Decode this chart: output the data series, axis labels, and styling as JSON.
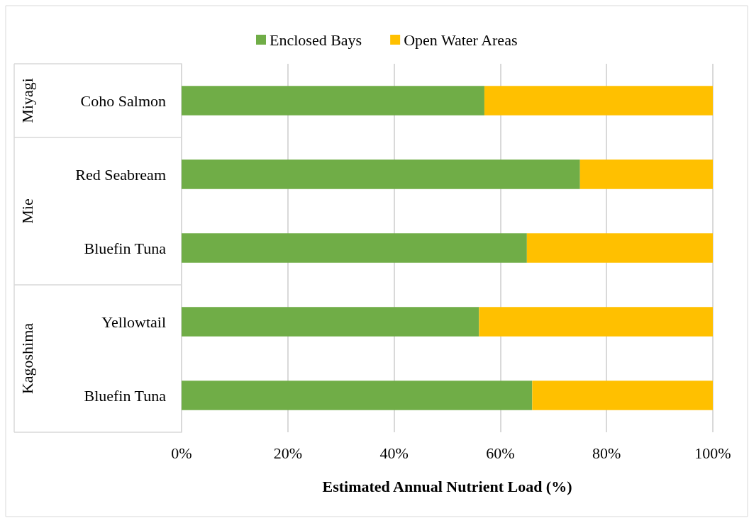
{
  "chart_data": {
    "type": "bar",
    "orientation": "horizontal",
    "stacked": true,
    "categories": [
      "Coho Salmon",
      "Red Seabream",
      "Bluefin Tuna",
      "Yellowtail",
      "Bluefin Tuna"
    ],
    "series": [
      {
        "name": "Enclosed Bays",
        "color": "#70ad47",
        "values": [
          57,
          75,
          65,
          56,
          66
        ]
      },
      {
        "name": "Open Water Areas",
        "color": "#ffc000",
        "values": [
          43,
          25,
          35,
          44,
          34
        ]
      }
    ],
    "xlabel": "Estimated Annual Nutrient Load (%)",
    "xlim": [
      0,
      100
    ],
    "xticks": [
      {
        "value": 0,
        "label": "0%"
      },
      {
        "value": 20,
        "label": "20%"
      },
      {
        "value": 40,
        "label": "40%"
      },
      {
        "value": 60,
        "label": "60%"
      },
      {
        "value": 80,
        "label": "80%"
      },
      {
        "value": 100,
        "label": "100%"
      }
    ],
    "annotations": [
      "Miyagi",
      "Mie",
      "Kagoshima"
    ],
    "grid": "x",
    "legend": "top"
  }
}
